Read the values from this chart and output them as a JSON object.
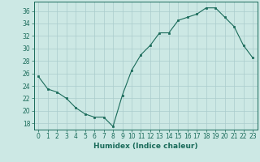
{
  "x": [
    0,
    1,
    2,
    3,
    4,
    5,
    6,
    7,
    8,
    9,
    10,
    11,
    12,
    13,
    14,
    15,
    16,
    17,
    18,
    19,
    20,
    21,
    22,
    23
  ],
  "y": [
    25.5,
    23.5,
    23.0,
    22.0,
    20.5,
    19.5,
    19.0,
    19.0,
    17.5,
    22.5,
    26.5,
    29.0,
    30.5,
    32.5,
    32.5,
    34.5,
    35.0,
    35.5,
    36.5,
    36.5,
    35.0,
    33.5,
    30.5,
    28.5
  ],
  "line_color": "#1a6b5a",
  "marker_color": "#1a6b5a",
  "bg_color": "#cce8e4",
  "grid_color": "#aacccc",
  "xlabel": "Humidex (Indice chaleur)",
  "ylabel_ticks": [
    18,
    20,
    22,
    24,
    26,
    28,
    30,
    32,
    34,
    36
  ],
  "ylim": [
    17.0,
    37.5
  ],
  "xlim": [
    -0.5,
    23.5
  ],
  "xticks": [
    0,
    1,
    2,
    3,
    4,
    5,
    6,
    7,
    8,
    9,
    10,
    11,
    12,
    13,
    14,
    15,
    16,
    17,
    18,
    19,
    20,
    21,
    22,
    23
  ],
  "xlabel_fontsize": 6.5,
  "tick_fontsize": 5.5
}
